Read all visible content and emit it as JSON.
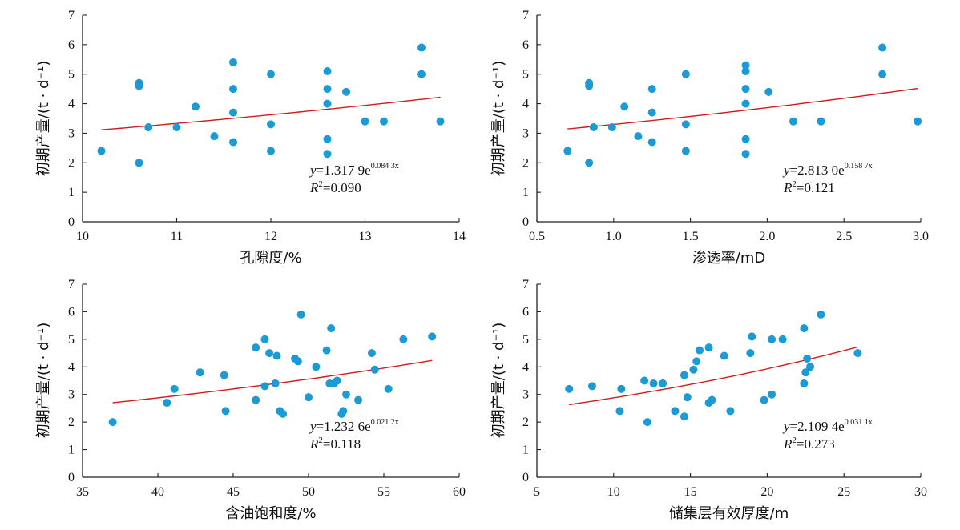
{
  "chart_data": [
    {
      "type": "scatter",
      "xlabel": "孔隙度/%",
      "ylabel": "初期产量/(t · d⁻¹)",
      "xlim": [
        10,
        14
      ],
      "ylim": [
        0,
        7
      ],
      "xticks": [
        10,
        11,
        12,
        13,
        14
      ],
      "yticks": [
        0,
        1,
        2,
        3,
        4,
        5,
        6,
        7
      ],
      "xtick_labels": [
        "10",
        "11",
        "12",
        "13",
        "14"
      ],
      "ytick_labels": [
        "0",
        "1",
        "2",
        "3",
        "4",
        "5",
        "6",
        "7"
      ],
      "point_color": "#1a9ad6",
      "trend_color": "#d01c1c",
      "points": [
        [
          10.2,
          2.4
        ],
        [
          10.6,
          2.0
        ],
        [
          10.6,
          4.6
        ],
        [
          10.6,
          4.7
        ],
        [
          10.7,
          3.2
        ],
        [
          11.0,
          3.2
        ],
        [
          11.2,
          3.9
        ],
        [
          11.4,
          2.9
        ],
        [
          11.6,
          5.4
        ],
        [
          11.6,
          4.5
        ],
        [
          11.6,
          3.7
        ],
        [
          11.6,
          2.7
        ],
        [
          12.0,
          5.0
        ],
        [
          12.0,
          3.3
        ],
        [
          12.0,
          2.4
        ],
        [
          12.6,
          5.1
        ],
        [
          12.6,
          4.5
        ],
        [
          12.6,
          4.0
        ],
        [
          12.6,
          2.8
        ],
        [
          12.6,
          2.3
        ],
        [
          12.8,
          4.4
        ],
        [
          13.0,
          3.4
        ],
        [
          13.2,
          3.4
        ],
        [
          13.6,
          5.9
        ],
        [
          13.6,
          5.0
        ],
        [
          13.8,
          3.4
        ]
      ],
      "fit": {
        "a": 1.3179,
        "b": 0.0843,
        "x_range": [
          10.2,
          13.8
        ]
      },
      "equation": {
        "y": "y",
        "eq": "=1.317 9e",
        "exp": "0.084 3x",
        "r": "R",
        "r2": "=0.090"
      }
    },
    {
      "type": "scatter",
      "xlabel": "渗透率/mD",
      "ylabel": "初期产量/(t · d⁻¹)",
      "xlim": [
        0.5,
        3.0
      ],
      "ylim": [
        0,
        7
      ],
      "xticks": [
        0.5,
        1.0,
        1.5,
        2.0,
        2.5,
        3.0
      ],
      "yticks": [
        0,
        1,
        2,
        3,
        4,
        5,
        6,
        7
      ],
      "xtick_labels": [
        "0.5",
        "1.0",
        "1.5",
        "2.0",
        "2.5",
        "3.0"
      ],
      "ytick_labels": [
        "0",
        "1",
        "2",
        "3",
        "4",
        "5",
        "6",
        "7"
      ],
      "point_color": "#1a9ad6",
      "trend_color": "#d01c1c",
      "points": [
        [
          0.7,
          2.4
        ],
        [
          0.84,
          2.0
        ],
        [
          0.84,
          4.6
        ],
        [
          0.84,
          4.7
        ],
        [
          0.87,
          3.2
        ],
        [
          0.99,
          3.2
        ],
        [
          1.07,
          3.9
        ],
        [
          1.16,
          2.9
        ],
        [
          1.25,
          4.5
        ],
        [
          1.25,
          3.7
        ],
        [
          1.25,
          2.7
        ],
        [
          1.47,
          5.0
        ],
        [
          1.47,
          3.3
        ],
        [
          1.47,
          2.4
        ],
        [
          1.86,
          5.3
        ],
        [
          1.86,
          5.1
        ],
        [
          1.86,
          4.5
        ],
        [
          1.86,
          4.0
        ],
        [
          1.86,
          2.8
        ],
        [
          1.86,
          2.3
        ],
        [
          2.01,
          4.4
        ],
        [
          2.17,
          3.4
        ],
        [
          2.35,
          3.4
        ],
        [
          2.75,
          5.9
        ],
        [
          2.75,
          5.0
        ],
        [
          2.98,
          3.4
        ]
      ],
      "fit": {
        "a": 2.813,
        "b": 0.1587,
        "x_range": [
          0.7,
          2.98
        ]
      },
      "equation": {
        "y": "y",
        "eq": "=2.813 0e",
        "exp": "0.158 7x",
        "r": "R",
        "r2": "=0.121"
      }
    },
    {
      "type": "scatter",
      "xlabel": "含油饱和度/%",
      "ylabel": "初期产量/(t · d⁻¹)",
      "xlim": [
        35,
        60
      ],
      "ylim": [
        0,
        7
      ],
      "xticks": [
        35,
        40,
        45,
        50,
        55,
        60
      ],
      "yticks": [
        0,
        1,
        2,
        3,
        4,
        5,
        6,
        7
      ],
      "xtick_labels": [
        "35",
        "40",
        "45",
        "50",
        "55",
        "60"
      ],
      "ytick_labels": [
        "0",
        "1",
        "2",
        "3",
        "4",
        "5",
        "6",
        "7"
      ],
      "point_color": "#1a9ad6",
      "trend_color": "#d01c1c",
      "points": [
        [
          37.0,
          2.0
        ],
        [
          40.6,
          2.7
        ],
        [
          41.1,
          3.2
        ],
        [
          42.8,
          3.8
        ],
        [
          44.4,
          3.7
        ],
        [
          44.5,
          2.4
        ],
        [
          46.5,
          2.8
        ],
        [
          46.5,
          4.7
        ],
        [
          47.1,
          3.3
        ],
        [
          47.1,
          5.0
        ],
        [
          47.4,
          4.5
        ],
        [
          47.8,
          3.4
        ],
        [
          47.9,
          4.4
        ],
        [
          48.1,
          2.4
        ],
        [
          48.3,
          2.3
        ],
        [
          49.1,
          4.3
        ],
        [
          49.3,
          4.2
        ],
        [
          49.5,
          5.9
        ],
        [
          50.0,
          2.9
        ],
        [
          50.5,
          4.0
        ],
        [
          51.2,
          4.6
        ],
        [
          51.4,
          3.4
        ],
        [
          51.5,
          5.4
        ],
        [
          51.7,
          3.4
        ],
        [
          51.9,
          3.5
        ],
        [
          52.2,
          2.3
        ],
        [
          52.3,
          2.4
        ],
        [
          52.5,
          3.0
        ],
        [
          53.3,
          2.8
        ],
        [
          54.2,
          4.5
        ],
        [
          54.4,
          3.9
        ],
        [
          55.3,
          3.2
        ],
        [
          56.3,
          5.0
        ],
        [
          58.2,
          5.1
        ]
      ],
      "fit": {
        "a": 1.2326,
        "b": 0.0212,
        "x_range": [
          37.0,
          58.2
        ]
      },
      "equation": {
        "y": "y",
        "eq": "=1.232 6e",
        "exp": "0.021 2x",
        "r": "R",
        "r2": "=0.118"
      }
    },
    {
      "type": "scatter",
      "xlabel": "储集层有效厚度/m",
      "ylabel": "初期产量/(t · d⁻¹)",
      "xlim": [
        5,
        30
      ],
      "ylim": [
        0,
        7
      ],
      "xticks": [
        5,
        10,
        15,
        20,
        25,
        30
      ],
      "yticks": [
        0,
        1,
        2,
        3,
        4,
        5,
        6,
        7
      ],
      "xtick_labels": [
        "5",
        "10",
        "15",
        "20",
        "25",
        "30"
      ],
      "ytick_labels": [
        "0",
        "1",
        "2",
        "3",
        "4",
        "5",
        "6",
        "7"
      ],
      "point_color": "#1a9ad6",
      "trend_color": "#d01c1c",
      "points": [
        [
          7.1,
          3.2
        ],
        [
          8.6,
          3.3
        ],
        [
          10.4,
          2.4
        ],
        [
          10.5,
          3.2
        ],
        [
          12.0,
          3.5
        ],
        [
          12.2,
          2.0
        ],
        [
          12.6,
          3.4
        ],
        [
          13.2,
          3.4
        ],
        [
          14.0,
          2.4
        ],
        [
          14.6,
          3.7
        ],
        [
          14.6,
          2.2
        ],
        [
          14.8,
          2.9
        ],
        [
          15.2,
          3.9
        ],
        [
          15.4,
          4.2
        ],
        [
          15.6,
          4.6
        ],
        [
          16.2,
          4.7
        ],
        [
          16.2,
          2.7
        ],
        [
          16.4,
          2.8
        ],
        [
          17.2,
          4.4
        ],
        [
          17.6,
          2.4
        ],
        [
          18.9,
          4.5
        ],
        [
          19.0,
          5.1
        ],
        [
          19.8,
          2.8
        ],
        [
          20.3,
          3.0
        ],
        [
          20.3,
          5.0
        ],
        [
          21.0,
          5.0
        ],
        [
          22.4,
          5.4
        ],
        [
          22.4,
          3.4
        ],
        [
          22.5,
          3.8
        ],
        [
          22.6,
          4.3
        ],
        [
          22.8,
          4.0
        ],
        [
          23.5,
          5.9
        ],
        [
          25.9,
          4.5
        ]
      ],
      "fit": {
        "a": 2.1094,
        "b": 0.0311,
        "x_range": [
          7.1,
          25.9
        ]
      },
      "equation": {
        "y": "y",
        "eq": "=2.109 4e",
        "exp": "0.031 1x",
        "r": "R",
        "r2": "=0.273"
      }
    }
  ]
}
